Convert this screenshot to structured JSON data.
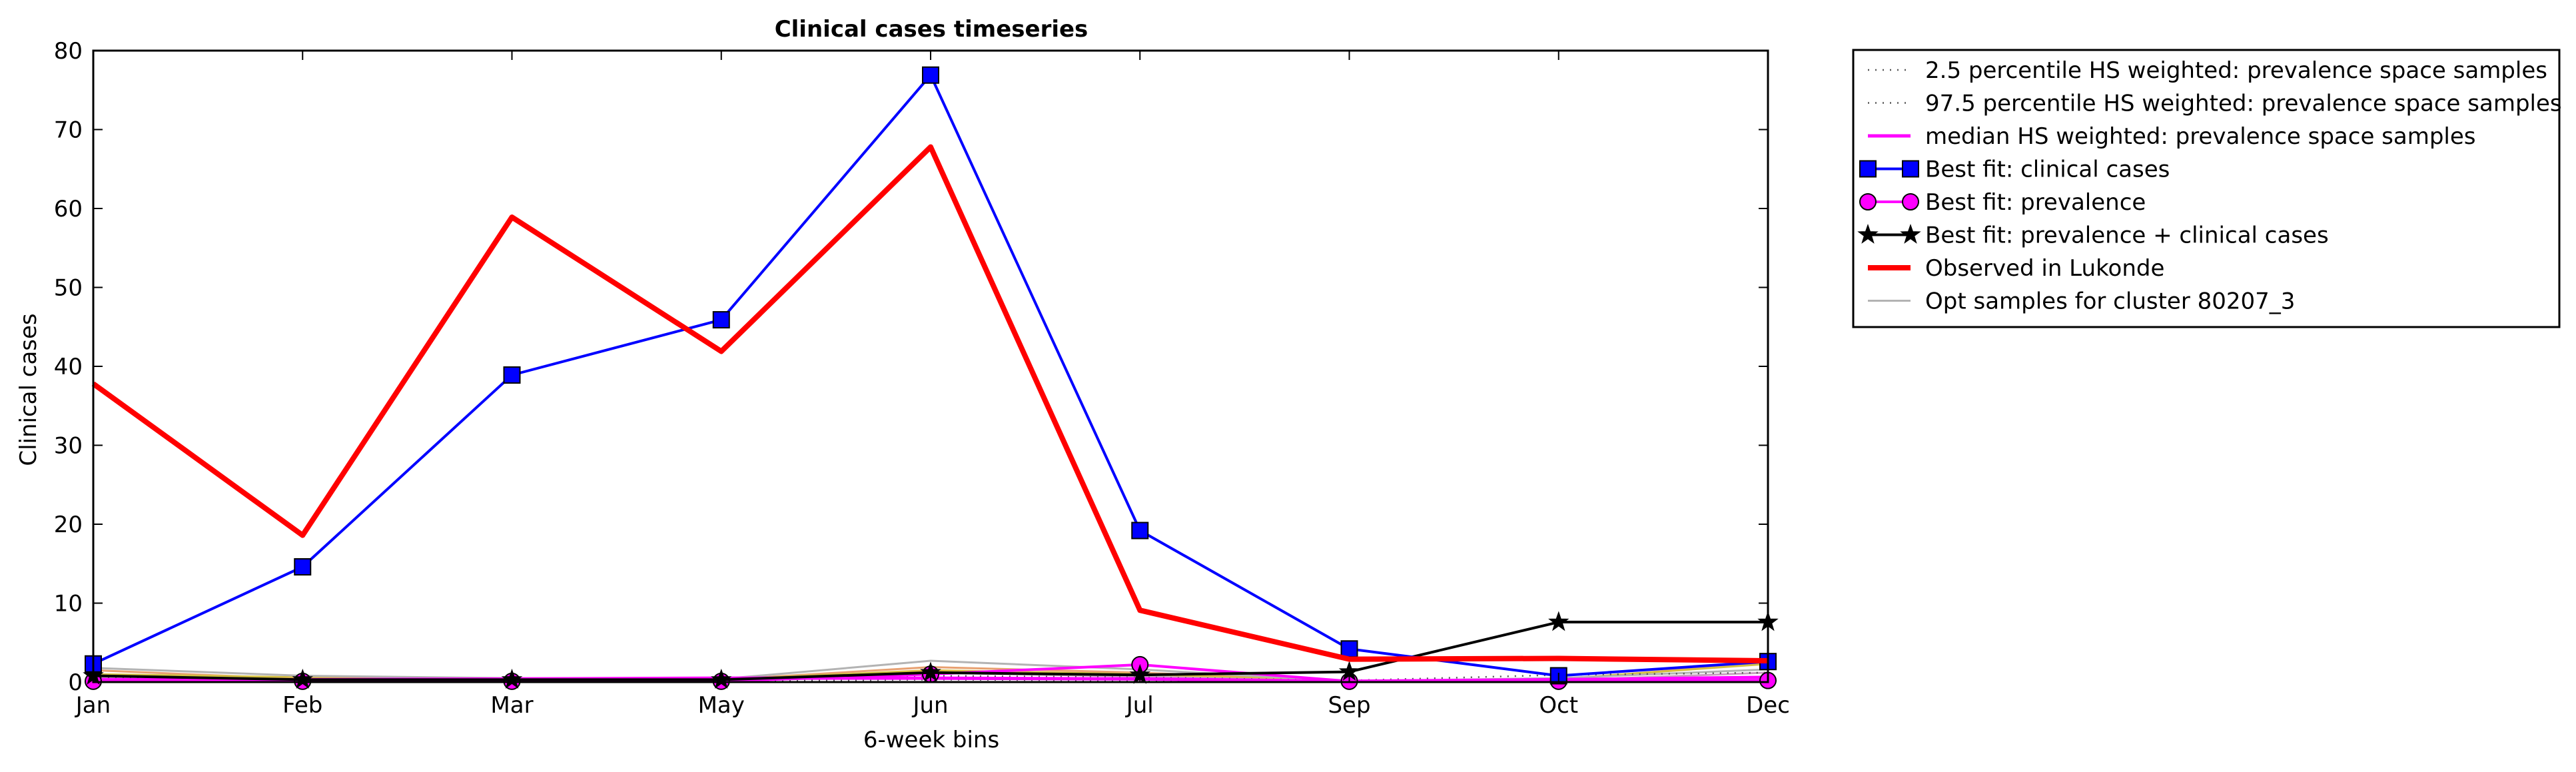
{
  "chart_data": {
    "type": "line",
    "title": "Clinical cases timeseries",
    "xlabel": "6-week bins",
    "ylabel": "Clinical cases",
    "categories": [
      "Jan",
      "Feb",
      "Mar",
      "May",
      "Jun",
      "Jul",
      "Sep",
      "Oct",
      "Dec"
    ],
    "y_ticks": [
      0,
      10,
      20,
      30,
      40,
      50,
      60,
      70,
      80
    ],
    "ylim": [
      0,
      80
    ],
    "grid": false,
    "legend_position": "outside-right",
    "series": [
      {
        "name": "2.5 percentile HS weighted: prevalence space samples",
        "style": "dotted",
        "color": "#555555",
        "values": [
          0.1,
          0.1,
          0.1,
          0.1,
          0.3,
          0.2,
          0.1,
          0.1,
          0.1
        ]
      },
      {
        "name": "97.5 percentile HS weighted: prevalence space samples",
        "style": "dotted",
        "color": "#555555",
        "values": [
          0.5,
          0.3,
          0.3,
          0.3,
          0.8,
          0.6,
          0.2,
          0.9,
          1.2
        ]
      },
      {
        "name": "median HS weighted: prevalence space samples",
        "style": "solid",
        "color": "#ff00ff",
        "values": [
          0.3,
          0.3,
          0.4,
          0.5,
          0.5,
          0.4,
          0.1,
          0.3,
          0.6
        ]
      },
      {
        "name": "Best fit: clinical cases",
        "style": "solid-square",
        "color": "#0000ff",
        "values": [
          2.3,
          14.6,
          38.9,
          45.9,
          76.9,
          19.2,
          4.2,
          0.8,
          2.6
        ]
      },
      {
        "name": "Best fit: prevalence",
        "style": "solid-circle",
        "color": "#ff00ff",
        "values": [
          0.1,
          0.1,
          0.1,
          0.1,
          1.0,
          2.2,
          0.1,
          0.1,
          0.2
        ]
      },
      {
        "name": "Best fit: prevalence + clinical cases",
        "style": "solid-star",
        "color": "#000000",
        "values": [
          0.8,
          0.3,
          0.3,
          0.3,
          1.2,
          0.9,
          1.3,
          7.6,
          7.6
        ]
      },
      {
        "name": "Observed in Lukonde",
        "style": "thick-solid",
        "color": "#ff0000",
        "values": [
          37.8,
          18.6,
          58.9,
          41.9,
          67.8,
          9.1,
          2.9,
          3.0,
          2.7
        ]
      },
      {
        "name": "Opt samples for cluster 80207_3",
        "style": "solid",
        "color": "#b3b3b3",
        "values": [
          1.8,
          0.8,
          0.5,
          0.4,
          2.7,
          1.6,
          0.1,
          0.5,
          1.6
        ]
      }
    ],
    "extra_sample_lines": [
      {
        "color": "#e8a070",
        "values": [
          1.5,
          0.4,
          0.3,
          0.3,
          1.9,
          1.2,
          0.1,
          0.3,
          2.5
        ]
      },
      {
        "color": "#d4c040",
        "values": [
          1.0,
          0.6,
          0.4,
          0.3,
          1.5,
          1.0,
          0.1,
          0.4,
          2.3
        ]
      },
      {
        "color": "#c8a0c0",
        "values": [
          0.6,
          0.3,
          0.2,
          0.2,
          1.2,
          0.7,
          0.1,
          0.2,
          1.2
        ]
      }
    ]
  }
}
